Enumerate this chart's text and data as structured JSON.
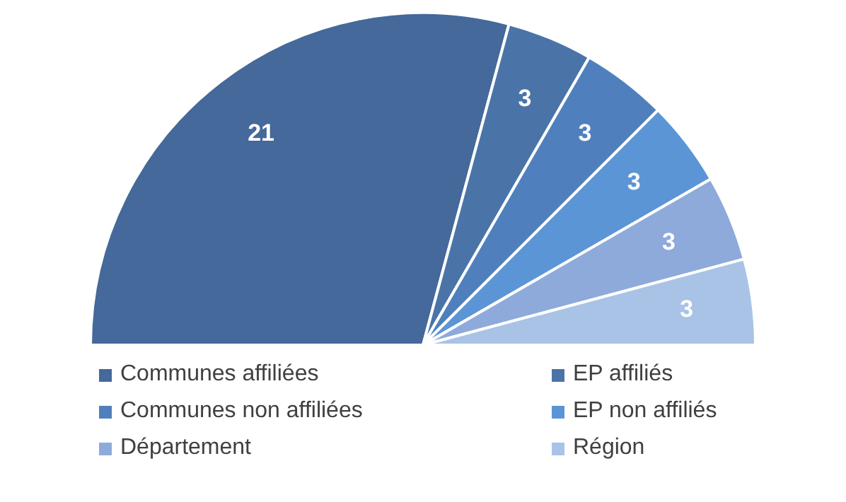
{
  "chart_data": {
    "type": "pie",
    "categories": [
      "Communes affiliées",
      "EP affiliés",
      "Communes non affiliées",
      "EP non affiliés",
      "Département",
      "Région"
    ],
    "values": [
      21,
      3,
      3,
      3,
      3,
      3
    ],
    "colors": [
      "#44699a",
      "#4a74a8",
      "#4f80bd",
      "#5b95d6",
      "#8eaadb",
      "#a9c3e6"
    ],
    "data_labels": true,
    "legend": "bottom"
  }
}
